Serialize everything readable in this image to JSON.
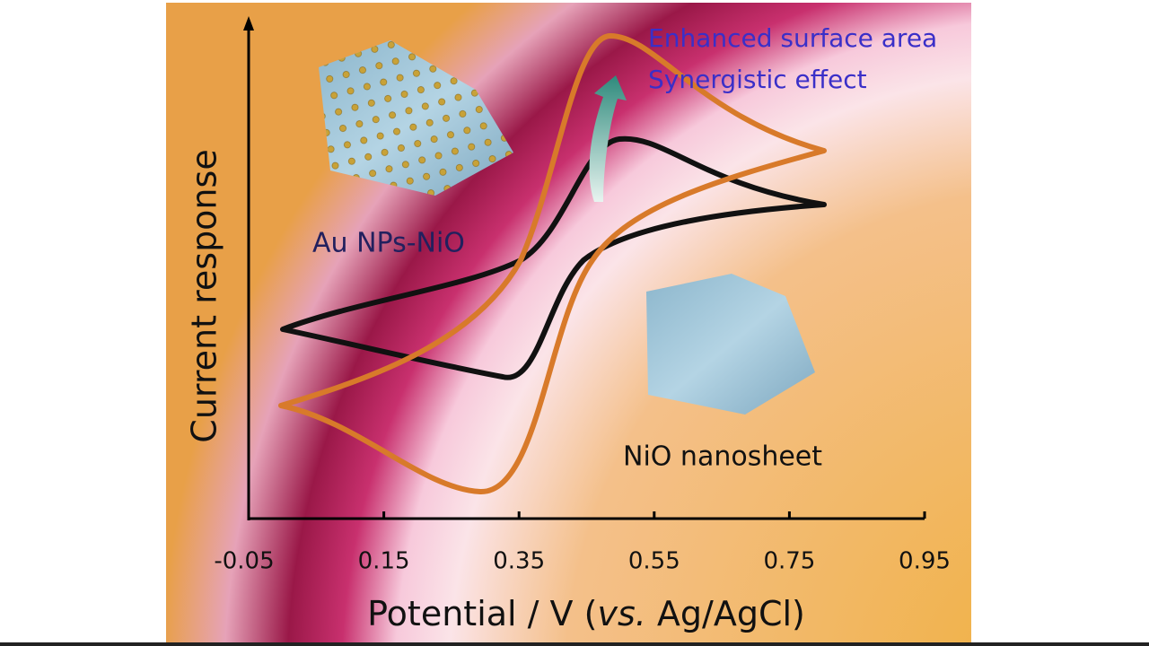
{
  "chart_data": {
    "type": "line",
    "xlabel": [
      "Potential / V (",
      "vs.",
      " Ag/AgCl)"
    ],
    "ylabel": "Current response",
    "xlim": [
      -0.05,
      0.95
    ],
    "xticks": [
      -0.05,
      0.15,
      0.35,
      0.55,
      0.75,
      0.95
    ],
    "annotations": [
      "Enhanced surface area",
      "Synergistic effect",
      "Au NPs-NiO",
      "NiO nanosheet"
    ]
  }
}
